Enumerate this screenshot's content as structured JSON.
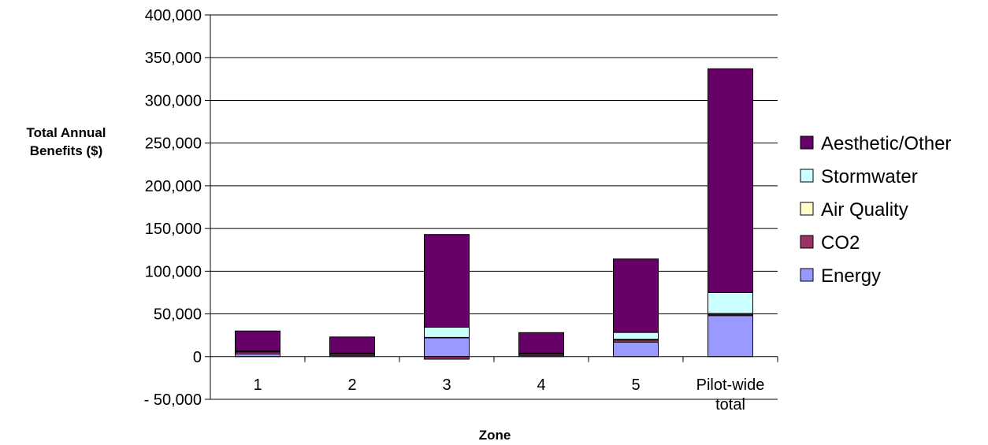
{
  "chart_data": {
    "type": "bar",
    "stacked": true,
    "title": "",
    "xlabel": "Zone",
    "ylabel": [
      "Total Annual",
      "Benefits ($)"
    ],
    "categories": [
      [
        "1"
      ],
      [
        "2"
      ],
      [
        "3"
      ],
      [
        "4"
      ],
      [
        "5"
      ],
      [
        "Pilot-wide",
        "total"
      ]
    ],
    "ylim": [
      -50000,
      400000
    ],
    "yticks": [
      -50000,
      0,
      50000,
      100000,
      150000,
      200000,
      250000,
      300000,
      350000,
      400000
    ],
    "ytick_labels": [
      "- 50,000",
      "0",
      "50,000",
      "100,000",
      "150,000",
      "200,000",
      "250,000",
      "300,000",
      "350,000",
      "400,000"
    ],
    "grid": true,
    "legend_position": "right",
    "series": [
      {
        "name": "Energy",
        "color": "#9999ff",
        "values": [
          3000,
          1500,
          22000,
          1500,
          17000,
          48000
        ]
      },
      {
        "name": "CO2",
        "color": "#993366",
        "values": [
          2500,
          2000,
          -3000,
          2000,
          2500,
          1500
        ]
      },
      {
        "name": "Air Quality",
        "color": "#ffffcc",
        "values": [
          300,
          200,
          500,
          200,
          800,
          1000
        ]
      },
      {
        "name": "Stormwater",
        "color": "#ccffff",
        "values": [
          800,
          400,
          12000,
          400,
          8000,
          24500
        ]
      },
      {
        "name": "Aesthetic/Other",
        "color": "#660066",
        "values": [
          23400,
          18900,
          108500,
          24000,
          86000,
          262000
        ]
      }
    ],
    "legend_order": [
      "Aesthetic/Other",
      "Stormwater",
      "Air Quality",
      "CO2",
      "Energy"
    ]
  }
}
